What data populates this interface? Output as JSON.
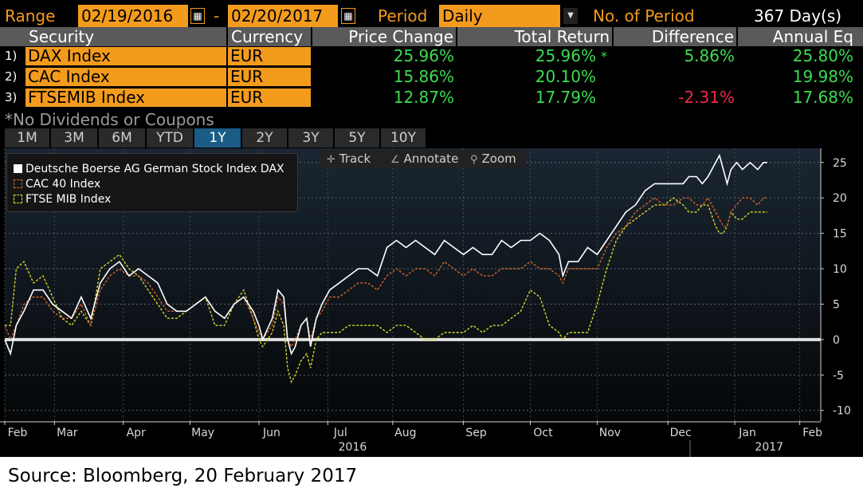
{
  "range_bar": {
    "range_label": "Range",
    "start_date": "02/19/2016",
    "separator": "-",
    "end_date": "02/20/2017",
    "period_label": "Period",
    "period_value": "Daily",
    "num_period_label": "No. of Period",
    "num_period_value": "367 Day(s)"
  },
  "table": {
    "headers": [
      "Security",
      "Currency",
      "Price Change",
      "Total Return",
      "Difference",
      "Annual Eq"
    ],
    "rows": [
      {
        "num": "1)",
        "security": "DAX Index",
        "currency": "EUR",
        "price_change": "25.96%",
        "total_return": "25.96%",
        "flag": "*",
        "difference": "5.86%",
        "annual_eq": "25.80%"
      },
      {
        "num": "2)",
        "security": "CAC Index",
        "currency": "EUR",
        "price_change": "15.86%",
        "total_return": "20.10%",
        "flag": "",
        "difference": "",
        "annual_eq": "19.98%"
      },
      {
        "num": "3)",
        "security": "FTSEMIB Index",
        "currency": "EUR",
        "price_change": "12.87%",
        "total_return": "17.79%",
        "flag": "",
        "difference": "-2.31%",
        "annual_eq": "17.68%"
      }
    ],
    "footnote": "*No Dividends or Coupons"
  },
  "tabs": [
    "1M",
    "3M",
    "6M",
    "YTD",
    "1Y",
    "2Y",
    "3Y",
    "5Y",
    "10Y"
  ],
  "active_tab": "1Y",
  "toolbar": {
    "track": "Track",
    "annotate": "Annotate",
    "zoom": "Zoom"
  },
  "colors": {
    "dax": "#ffffff",
    "cac": "#d2612a",
    "ftse": "#d7d72a",
    "accent": "#f39b1d",
    "positive": "#3ddc52",
    "negative": "#f0294a"
  },
  "chart_data": {
    "type": "line",
    "series": [
      {
        "name": "Deutsche Boerse AG German Stock Index DAX",
        "values": [
          [
            0,
            0
          ],
          [
            3,
            -2
          ],
          [
            6,
            2
          ],
          [
            10,
            4
          ],
          [
            15,
            7
          ],
          [
            20,
            7
          ],
          [
            25,
            5
          ],
          [
            30,
            4
          ],
          [
            35,
            3
          ],
          [
            40,
            6
          ],
          [
            45,
            3
          ],
          [
            50,
            8
          ],
          [
            55,
            10
          ],
          [
            60,
            11
          ],
          [
            65,
            9
          ],
          [
            70,
            10
          ],
          [
            75,
            9
          ],
          [
            80,
            8
          ],
          [
            85,
            5
          ],
          [
            90,
            4
          ],
          [
            95,
            4
          ],
          [
            100,
            5
          ],
          [
            105,
            6
          ],
          [
            110,
            4
          ],
          [
            115,
            3
          ],
          [
            120,
            5
          ],
          [
            125,
            6
          ],
          [
            130,
            4
          ],
          [
            133,
            2
          ],
          [
            135,
            0
          ],
          [
            140,
            3
          ],
          [
            143,
            7
          ],
          [
            146,
            6
          ],
          [
            148,
            0
          ],
          [
            150,
            -2
          ],
          [
            152,
            -1
          ],
          [
            155,
            2
          ],
          [
            158,
            3
          ],
          [
            160,
            -1
          ],
          [
            163,
            3
          ],
          [
            166,
            5
          ],
          [
            170,
            7
          ],
          [
            175,
            8
          ],
          [
            180,
            9
          ],
          [
            185,
            10
          ],
          [
            190,
            10
          ],
          [
            195,
            9
          ],
          [
            200,
            13
          ],
          [
            205,
            14
          ],
          [
            210,
            13
          ],
          [
            215,
            14
          ],
          [
            220,
            13
          ],
          [
            225,
            12
          ],
          [
            230,
            14
          ],
          [
            235,
            13
          ],
          [
            240,
            12
          ],
          [
            245,
            13
          ],
          [
            250,
            12
          ],
          [
            255,
            12
          ],
          [
            260,
            14
          ],
          [
            265,
            13
          ],
          [
            270,
            14
          ],
          [
            275,
            14
          ],
          [
            280,
            15
          ],
          [
            285,
            14
          ],
          [
            290,
            12
          ],
          [
            292,
            9
          ],
          [
            295,
            11
          ],
          [
            300,
            11
          ],
          [
            305,
            13
          ],
          [
            310,
            12
          ],
          [
            315,
            14
          ],
          [
            320,
            16
          ],
          [
            325,
            18
          ],
          [
            330,
            19
          ],
          [
            335,
            21
          ],
          [
            340,
            22
          ],
          [
            345,
            22
          ],
          [
            350,
            22
          ],
          [
            355,
            22
          ],
          [
            358,
            23
          ],
          [
            362,
            23
          ],
          [
            365,
            22
          ],
          [
            368,
            23
          ],
          [
            372,
            25
          ],
          [
            374,
            26
          ],
          [
            376,
            24
          ],
          [
            378,
            22
          ],
          [
            380,
            24
          ],
          [
            383,
            25
          ],
          [
            386,
            24
          ],
          [
            390,
            25
          ],
          [
            394,
            24
          ],
          [
            397,
            25
          ],
          [
            399,
            25
          ]
        ]
      },
      {
        "name": "CAC 40 Index",
        "values": [
          [
            0,
            2
          ],
          [
            3,
            0
          ],
          [
            6,
            2
          ],
          [
            10,
            5
          ],
          [
            15,
            6
          ],
          [
            20,
            6
          ],
          [
            25,
            4
          ],
          [
            30,
            3
          ],
          [
            35,
            3
          ],
          [
            40,
            5
          ],
          [
            45,
            2
          ],
          [
            50,
            7
          ],
          [
            55,
            9
          ],
          [
            60,
            10
          ],
          [
            65,
            9
          ],
          [
            70,
            9
          ],
          [
            75,
            8
          ],
          [
            80,
            6
          ],
          [
            85,
            4
          ],
          [
            90,
            4
          ],
          [
            95,
            4
          ],
          [
            100,
            5
          ],
          [
            105,
            6
          ],
          [
            110,
            4
          ],
          [
            115,
            3
          ],
          [
            120,
            5
          ],
          [
            125,
            6
          ],
          [
            130,
            3
          ],
          [
            133,
            1
          ],
          [
            135,
            0
          ],
          [
            140,
            2
          ],
          [
            143,
            6
          ],
          [
            146,
            5
          ],
          [
            148,
            0
          ],
          [
            150,
            -1
          ],
          [
            152,
            0
          ],
          [
            155,
            2
          ],
          [
            158,
            3
          ],
          [
            160,
            0
          ],
          [
            163,
            3
          ],
          [
            166,
            4
          ],
          [
            170,
            6
          ],
          [
            175,
            6
          ],
          [
            180,
            7
          ],
          [
            185,
            8
          ],
          [
            190,
            8
          ],
          [
            195,
            7
          ],
          [
            200,
            9
          ],
          [
            205,
            10
          ],
          [
            210,
            9
          ],
          [
            215,
            10
          ],
          [
            220,
            10
          ],
          [
            225,
            9
          ],
          [
            230,
            11
          ],
          [
            235,
            10
          ],
          [
            240,
            9
          ],
          [
            245,
            10
          ],
          [
            250,
            9
          ],
          [
            255,
            9
          ],
          [
            260,
            10
          ],
          [
            265,
            10
          ],
          [
            270,
            10
          ],
          [
            275,
            11
          ],
          [
            280,
            10
          ],
          [
            285,
            10
          ],
          [
            290,
            9
          ],
          [
            292,
            8
          ],
          [
            295,
            10
          ],
          [
            300,
            10
          ],
          [
            305,
            10
          ],
          [
            310,
            10
          ],
          [
            315,
            13
          ],
          [
            320,
            15
          ],
          [
            325,
            16
          ],
          [
            330,
            18
          ],
          [
            335,
            19
          ],
          [
            340,
            20
          ],
          [
            345,
            19
          ],
          [
            350,
            19
          ],
          [
            355,
            20
          ],
          [
            358,
            20
          ],
          [
            362,
            19
          ],
          [
            365,
            19
          ],
          [
            368,
            20
          ],
          [
            372,
            18
          ],
          [
            374,
            17
          ],
          [
            376,
            16
          ],
          [
            378,
            16
          ],
          [
            380,
            18
          ],
          [
            383,
            19
          ],
          [
            386,
            20
          ],
          [
            390,
            20
          ],
          [
            394,
            19
          ],
          [
            397,
            20
          ],
          [
            399,
            20
          ]
        ]
      },
      {
        "name": "FTSE MIB Index",
        "values": [
          [
            0,
            2
          ],
          [
            3,
            2
          ],
          [
            6,
            10
          ],
          [
            10,
            11
          ],
          [
            15,
            8
          ],
          [
            20,
            9
          ],
          [
            25,
            6
          ],
          [
            30,
            3
          ],
          [
            35,
            2
          ],
          [
            40,
            4
          ],
          [
            45,
            2
          ],
          [
            50,
            10
          ],
          [
            55,
            11
          ],
          [
            60,
            12
          ],
          [
            65,
            10
          ],
          [
            70,
            9
          ],
          [
            75,
            7
          ],
          [
            80,
            5
          ],
          [
            85,
            3
          ],
          [
            90,
            3
          ],
          [
            95,
            4
          ],
          [
            100,
            5
          ],
          [
            105,
            6
          ],
          [
            110,
            2
          ],
          [
            115,
            2
          ],
          [
            120,
            5
          ],
          [
            125,
            7
          ],
          [
            130,
            3
          ],
          [
            133,
            0
          ],
          [
            135,
            -1
          ],
          [
            140,
            1
          ],
          [
            143,
            4
          ],
          [
            146,
            2
          ],
          [
            148,
            -4
          ],
          [
            150,
            -6
          ],
          [
            152,
            -5
          ],
          [
            155,
            -3
          ],
          [
            158,
            -2
          ],
          [
            160,
            -4
          ],
          [
            163,
            0
          ],
          [
            166,
            1
          ],
          [
            170,
            1
          ],
          [
            175,
            1
          ],
          [
            180,
            2
          ],
          [
            185,
            2
          ],
          [
            190,
            2
          ],
          [
            195,
            2
          ],
          [
            200,
            1
          ],
          [
            205,
            2
          ],
          [
            210,
            2
          ],
          [
            215,
            1
          ],
          [
            220,
            0
          ],
          [
            225,
            0
          ],
          [
            230,
            1
          ],
          [
            235,
            1
          ],
          [
            240,
            1
          ],
          [
            245,
            2
          ],
          [
            250,
            1
          ],
          [
            255,
            2
          ],
          [
            260,
            2
          ],
          [
            265,
            3
          ],
          [
            270,
            4
          ],
          [
            275,
            7
          ],
          [
            280,
            6
          ],
          [
            285,
            2
          ],
          [
            290,
            1
          ],
          [
            292,
            0
          ],
          [
            295,
            1
          ],
          [
            300,
            1
          ],
          [
            305,
            1
          ],
          [
            310,
            5
          ],
          [
            315,
            10
          ],
          [
            320,
            14
          ],
          [
            325,
            16
          ],
          [
            330,
            17
          ],
          [
            335,
            18
          ],
          [
            340,
            19
          ],
          [
            345,
            19
          ],
          [
            350,
            20
          ],
          [
            355,
            19
          ],
          [
            358,
            18
          ],
          [
            362,
            18
          ],
          [
            365,
            19
          ],
          [
            368,
            19
          ],
          [
            372,
            16
          ],
          [
            374,
            15
          ],
          [
            376,
            15
          ],
          [
            378,
            16
          ],
          [
            380,
            18
          ],
          [
            383,
            17
          ],
          [
            386,
            17
          ],
          [
            390,
            18
          ],
          [
            394,
            18
          ],
          [
            397,
            18
          ],
          [
            399,
            18
          ]
        ]
      }
    ],
    "x_labels": [
      {
        "label": "Feb",
        "x": 0
      },
      {
        "label": "Mar",
        "x": 26
      },
      {
        "label": "Apr",
        "x": 62
      },
      {
        "label": "May",
        "x": 97
      },
      {
        "label": "Jun",
        "x": 133
      },
      {
        "label": "Jul",
        "x": 169
      },
      {
        "label": "Aug",
        "x": 203
      },
      {
        "label": "Sep",
        "x": 240
      },
      {
        "label": "Oct",
        "x": 275
      },
      {
        "label": "Nov",
        "x": 310
      },
      {
        "label": "Dec",
        "x": 347
      },
      {
        "label": "Jan",
        "x": 382
      },
      {
        "label": "Feb",
        "x": 416
      }
    ],
    "year_labels": [
      {
        "label": "2016",
        "x": 182
      },
      {
        "label": "2017",
        "x": 400
      }
    ],
    "y_ticks": [
      25,
      20,
      15,
      10,
      5,
      0,
      -5,
      -10
    ],
    "y_tick_labels": [
      "25",
      "20",
      "15",
      "10",
      "5",
      "0",
      "-5",
      "-10"
    ],
    "ylim": [
      -11.5,
      27
    ],
    "xlim": [
      0,
      427
    ],
    "zero_line": true,
    "grid": true,
    "legend_position": "top-left"
  },
  "caption": "Source: Bloomberg, 20 February 2017"
}
